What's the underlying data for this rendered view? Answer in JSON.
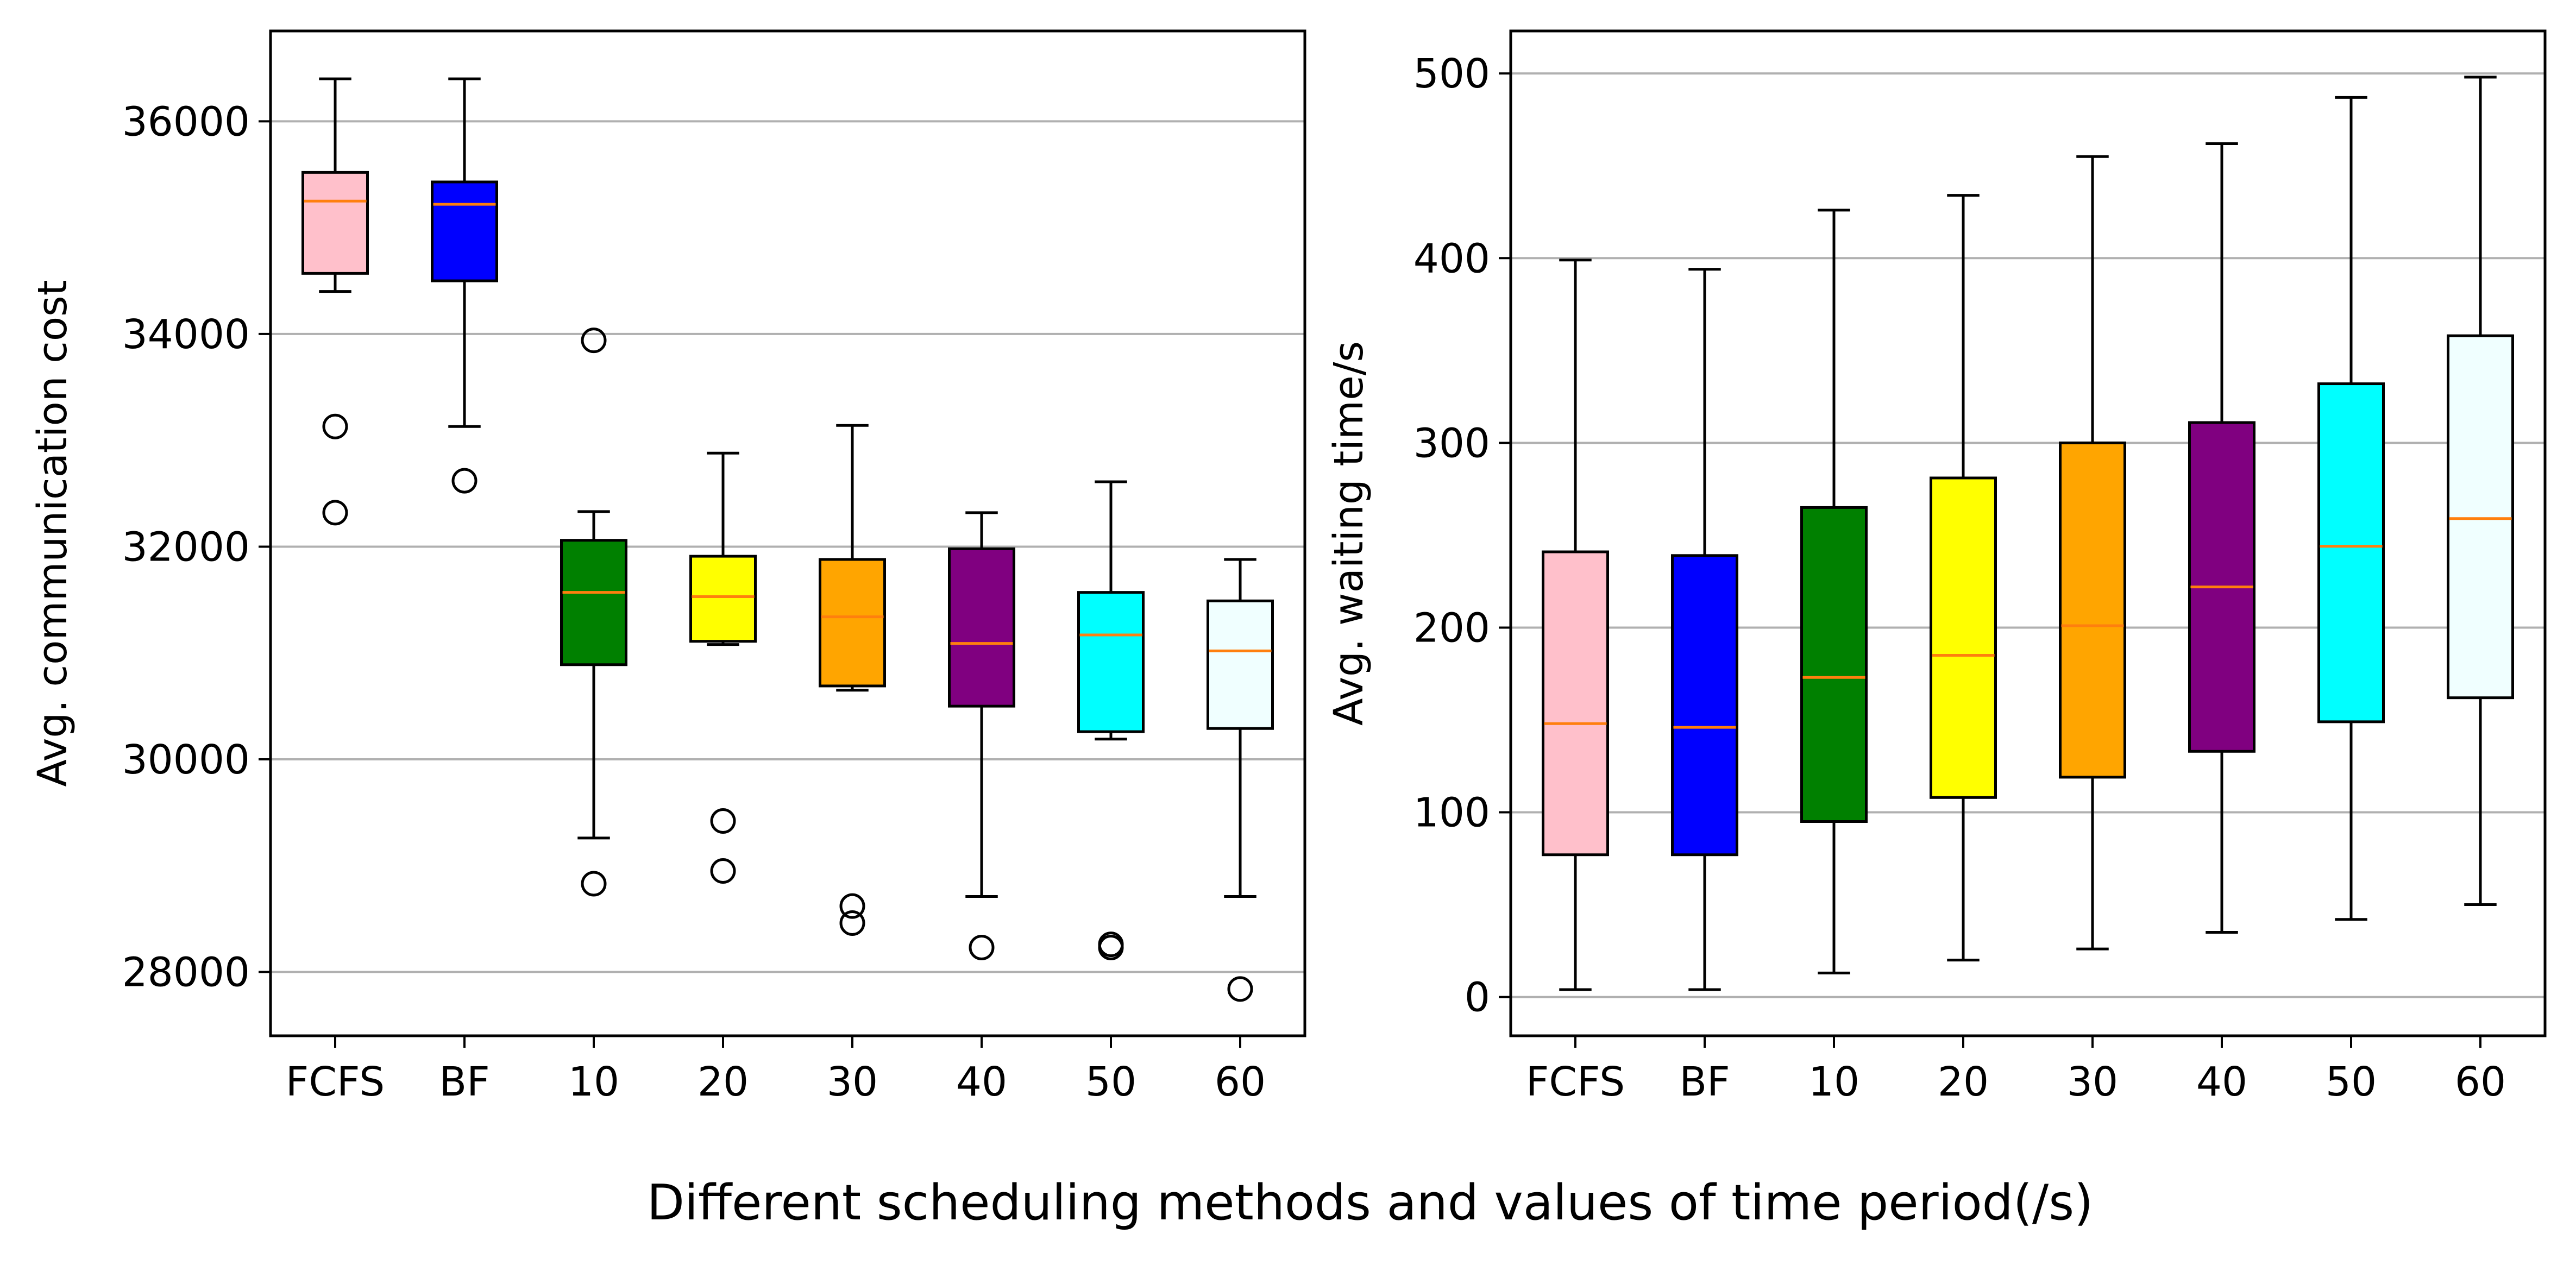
{
  "figure": {
    "supxlabel": "Different scheduling methods and values of time period(/s)"
  },
  "chart_data": [
    {
      "type": "boxplot",
      "title": "",
      "xlabel": "",
      "ylabel": "Avg. communication cost",
      "ylim": [
        27400,
        36850
      ],
      "yticks": [
        28000,
        30000,
        32000,
        34000,
        36000
      ],
      "grid": "y",
      "categories": [
        "FCFS",
        "BF",
        "10",
        "20",
        "30",
        "40",
        "50",
        "60"
      ],
      "colors": [
        "#ffc0cb",
        "#0000ff",
        "#008000",
        "#ffff00",
        "#ffa500",
        "#800080",
        "#00ffff",
        "#f0ffff"
      ],
      "median_color": "#ff7f0e",
      "boxes": [
        {
          "whislo": 34400,
          "q1": 34570,
          "med": 35250,
          "q3": 35520,
          "whishi": 36400,
          "fliers": [
            33130,
            32320
          ]
        },
        {
          "whislo": 33130,
          "q1": 34500,
          "med": 35220,
          "q3": 35430,
          "whishi": 36400,
          "fliers": [
            32620
          ]
        },
        {
          "whislo": 29260,
          "q1": 30890,
          "med": 31570,
          "q3": 32060,
          "whishi": 32330,
          "fliers": [
            33940,
            28830
          ]
        },
        {
          "whislo": 31080,
          "q1": 31110,
          "med": 31530,
          "q3": 31910,
          "whishi": 32880,
          "fliers": [
            29420,
            28950
          ]
        },
        {
          "whislo": 30650,
          "q1": 30690,
          "med": 31340,
          "q3": 31880,
          "whishi": 33140,
          "fliers": [
            28620,
            28460
          ]
        },
        {
          "whislo": 28710,
          "q1": 30500,
          "med": 31090,
          "q3": 31980,
          "whishi": 32320,
          "fliers": [
            28230
          ]
        },
        {
          "whislo": 30190,
          "q1": 30260,
          "med": 31170,
          "q3": 31570,
          "whishi": 32610,
          "fliers": [
            28260,
            28230
          ]
        },
        {
          "whislo": 28710,
          "q1": 30290,
          "med": 31020,
          "q3": 31490,
          "whishi": 31880,
          "fliers": [
            27840
          ]
        }
      ]
    },
    {
      "type": "boxplot",
      "title": "",
      "xlabel": "",
      "ylabel": "Avg. waiting time/s",
      "ylim": [
        -21,
        523
      ],
      "yticks": [
        0,
        100,
        200,
        300,
        400,
        500
      ],
      "grid": "y",
      "categories": [
        "FCFS",
        "BF",
        "10",
        "20",
        "30",
        "40",
        "50",
        "60"
      ],
      "colors": [
        "#ffc0cb",
        "#0000ff",
        "#008000",
        "#ffff00",
        "#ffa500",
        "#800080",
        "#00ffff",
        "#f0ffff"
      ],
      "median_color": "#ff7f0e",
      "boxes": [
        {
          "whislo": 4,
          "q1": 77,
          "med": 148,
          "q3": 241,
          "whishi": 399,
          "fliers": []
        },
        {
          "whislo": 4,
          "q1": 77,
          "med": 146,
          "q3": 239,
          "whishi": 394,
          "fliers": []
        },
        {
          "whislo": 13,
          "q1": 95,
          "med": 173,
          "q3": 265,
          "whishi": 426,
          "fliers": []
        },
        {
          "whislo": 20,
          "q1": 108,
          "med": 185,
          "q3": 281,
          "whishi": 434,
          "fliers": []
        },
        {
          "whislo": 26,
          "q1": 119,
          "med": 201,
          "q3": 300,
          "whishi": 455,
          "fliers": []
        },
        {
          "whislo": 35,
          "q1": 133,
          "med": 222,
          "q3": 311,
          "whishi": 462,
          "fliers": []
        },
        {
          "whislo": 42,
          "q1": 149,
          "med": 244,
          "q3": 332,
          "whishi": 487,
          "fliers": []
        },
        {
          "whislo": 50,
          "q1": 162,
          "med": 259,
          "q3": 358,
          "whishi": 498,
          "fliers": []
        }
      ]
    }
  ]
}
